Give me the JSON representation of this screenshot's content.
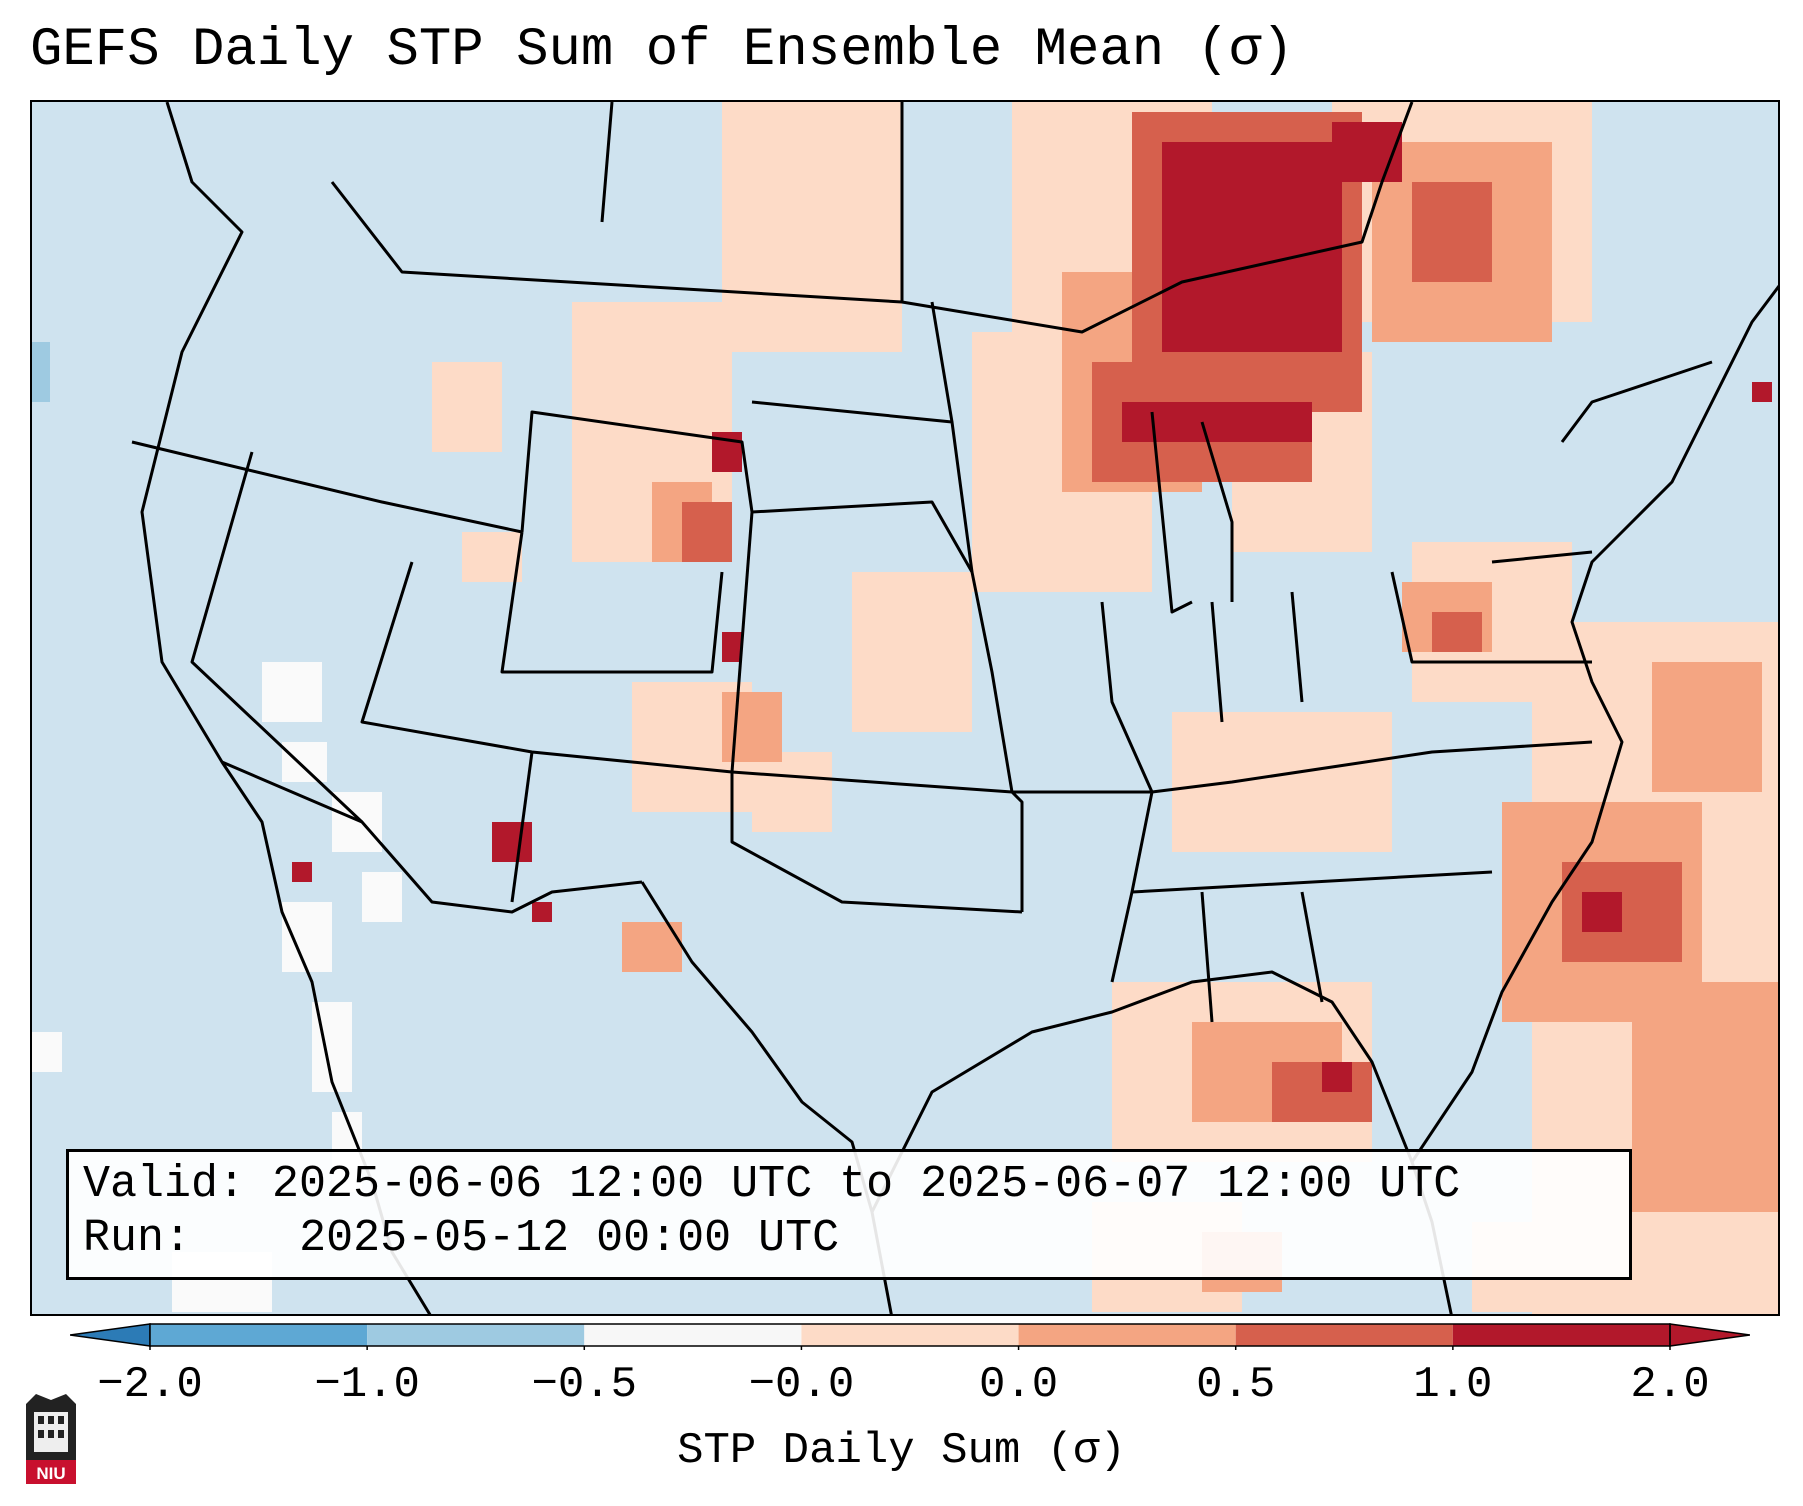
{
  "title": "GEFS Daily STP Sum of Ensemble Mean (σ)",
  "info": {
    "valid_label": "Valid:",
    "valid_value": "2025-06-06 12:00 UTC to 2025-06-07 12:00 UTC",
    "run_label": "Run:",
    "run_value": "2025-05-12 00:00 UTC"
  },
  "colorbar": {
    "label": "STP Daily Sum (σ)",
    "ticks": [
      "−2.0",
      "−1.0",
      "−0.5",
      "−0.0",
      "0.0",
      "0.5",
      "1.0",
      "2.0"
    ],
    "colors": [
      "#2c7bb6",
      "#5ea8d4",
      "#9ecae1",
      "#f7f7f7",
      "#fddbc7",
      "#f4a582",
      "#d6604d",
      "#b2182b"
    ],
    "extend": "both"
  },
  "map": {
    "projection": "Lambert conformal, CONUS",
    "background_category": "#cfe3ef",
    "land_border_color": "#000000"
  },
  "logo": {
    "text": "NIU",
    "color": "#c8102e"
  }
}
